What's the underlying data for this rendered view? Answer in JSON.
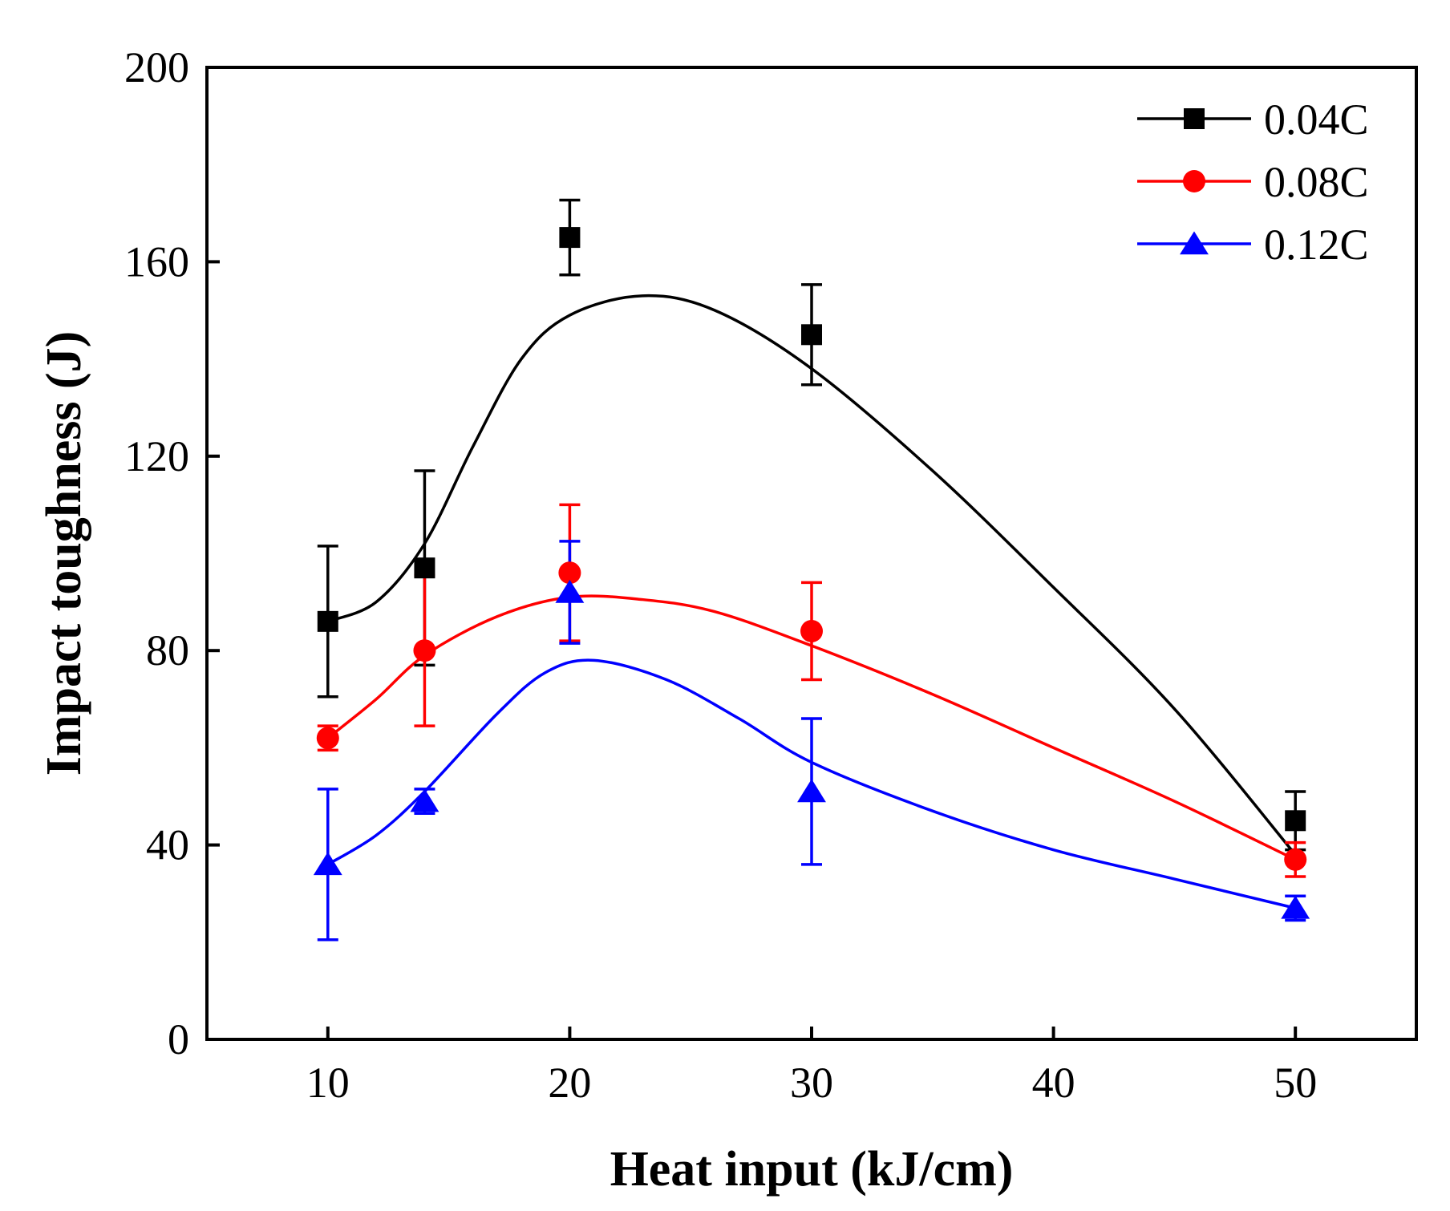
{
  "chart_data": {
    "type": "line",
    "xlabel": "Heat input (kJ/cm)",
    "ylabel": "Impact toughness (J)",
    "xlim": [
      5,
      55
    ],
    "ylim": [
      0,
      200
    ],
    "xticks": [
      10,
      20,
      30,
      40,
      50
    ],
    "yticks": [
      0,
      40,
      80,
      120,
      160,
      200
    ],
    "x": [
      10,
      14,
      20,
      30,
      50
    ],
    "legend_position": "top-right",
    "series": [
      {
        "name": "0.04C",
        "color": "#000000",
        "marker": "square",
        "values": [
          86,
          97,
          165,
          145,
          45
        ],
        "errors": [
          15.5,
          20,
          7.7,
          10.3,
          6
        ],
        "fit": [
          [
            10,
            86
          ],
          [
            12,
            90
          ],
          [
            14,
            102
          ],
          [
            16,
            122
          ],
          [
            18,
            140
          ],
          [
            20,
            149
          ],
          [
            23,
            153
          ],
          [
            26,
            150
          ],
          [
            30,
            138
          ],
          [
            35,
            117
          ],
          [
            40,
            93
          ],
          [
            45,
            68
          ],
          [
            50,
            38
          ]
        ]
      },
      {
        "name": "0.08C",
        "color": "#ff0000",
        "marker": "circle",
        "values": [
          62,
          80,
          96,
          84,
          37
        ],
        "errors": [
          2.5,
          15.5,
          14,
          10,
          3.5
        ],
        "fit": [
          [
            10,
            62
          ],
          [
            12,
            70
          ],
          [
            14,
            79
          ],
          [
            17,
            87
          ],
          [
            20,
            91
          ],
          [
            23,
            90.5
          ],
          [
            26,
            88
          ],
          [
            30,
            81
          ],
          [
            35,
            71
          ],
          [
            40,
            60
          ],
          [
            45,
            49
          ],
          [
            50,
            37
          ]
        ]
      },
      {
        "name": "0.12C",
        "color": "#0000ff",
        "marker": "triangle",
        "values": [
          36,
          49,
          92,
          51,
          27
        ],
        "errors": [
          15.5,
          2.5,
          10.5,
          15,
          2.5
        ],
        "fit": [
          [
            10,
            36
          ],
          [
            12,
            42
          ],
          [
            14,
            51
          ],
          [
            17,
            67
          ],
          [
            19,
            75.5
          ],
          [
            21,
            78
          ],
          [
            24,
            74
          ],
          [
            27,
            66
          ],
          [
            30,
            57
          ],
          [
            35,
            47
          ],
          [
            40,
            39
          ],
          [
            45,
            33
          ],
          [
            50,
            27
          ]
        ]
      }
    ]
  }
}
